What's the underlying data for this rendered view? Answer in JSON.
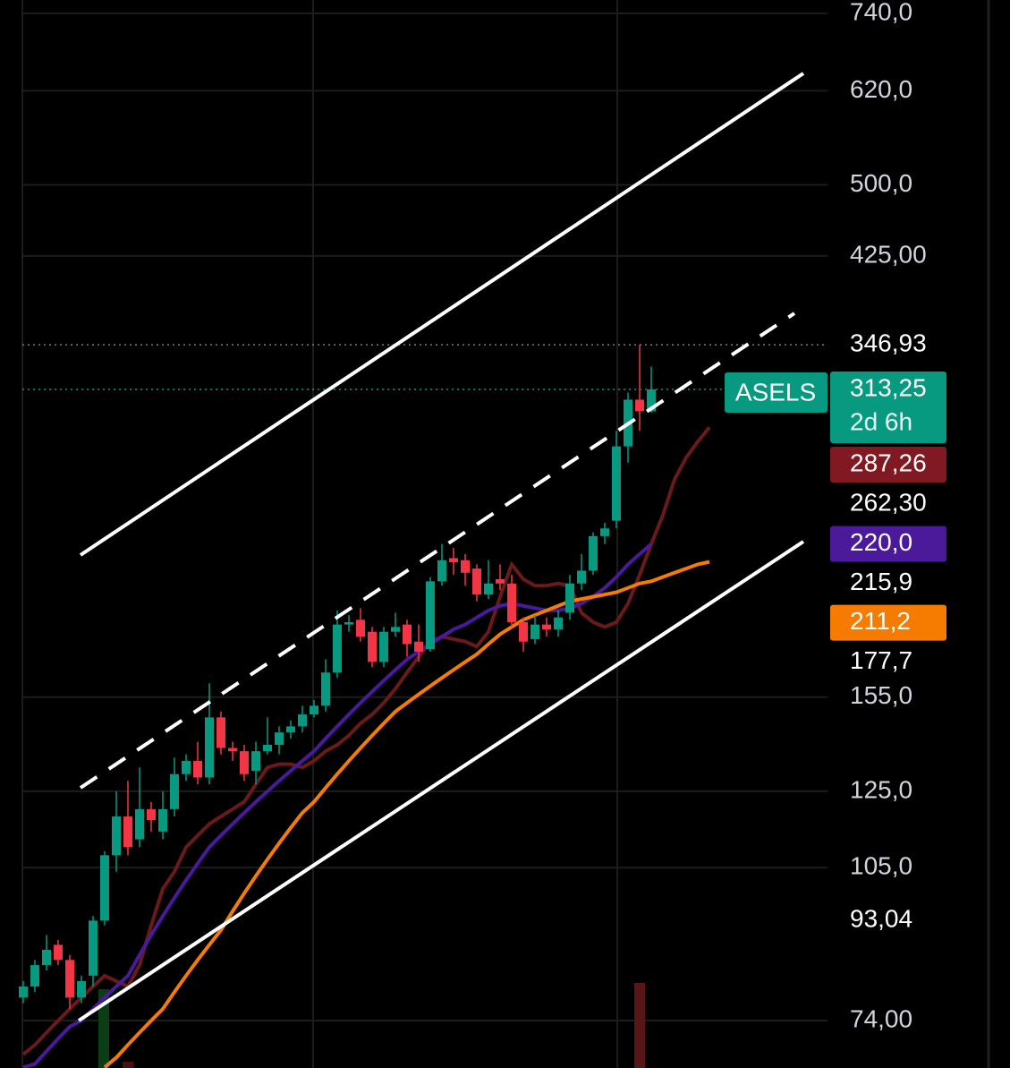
{
  "chart_data": {
    "type": "candlestick",
    "symbol": "ASELS",
    "countdown": "2d 6h",
    "log_scale": true,
    "grid": true,
    "ylim": [
      66.4,
      763
    ],
    "yticks": [
      {
        "value": 740,
        "label": "740,0"
      },
      {
        "value": 620,
        "label": "620,0"
      },
      {
        "value": 500,
        "label": "500,0"
      },
      {
        "value": 425,
        "label": "425,00"
      },
      {
        "value": 155,
        "label": "155,0"
      },
      {
        "value": 125,
        "label": "125,0"
      },
      {
        "value": 105,
        "label": "105,0"
      },
      {
        "value": 74,
        "label": "74,00"
      }
    ],
    "up_color": "#089981",
    "down_color": "#f23645",
    "candles": {
      "open": [
        78,
        80,
        84,
        88,
        85,
        78,
        82,
        93,
        108,
        118,
        112,
        120,
        114,
        120,
        130,
        134,
        129,
        148,
        138,
        137,
        131,
        137,
        139,
        143,
        145,
        149,
        152,
        164,
        183,
        185,
        180,
        168,
        180,
        183,
        176,
        173,
        202,
        213,
        212,
        208,
        196,
        203,
        201,
        184,
        177,
        183,
        181,
        188,
        201,
        207,
        224,
        232,
        275,
        306,
        298
      ],
      "high": [
        81,
        85,
        90,
        89,
        86,
        82,
        94,
        109,
        125,
        128,
        132,
        122,
        125,
        135,
        136,
        140,
        160,
        150,
        140,
        139,
        140,
        148,
        145,
        147,
        152,
        154,
        169,
        189,
        187,
        190,
        182,
        182,
        188,
        185,
        183,
        204,
        220,
        218,
        215,
        210,
        212,
        210,
        205,
        186,
        187,
        186,
        189,
        205,
        215,
        226,
        231,
        285,
        311,
        347,
        330
      ],
      "low": [
        77,
        79,
        83,
        84,
        76,
        77,
        80,
        92,
        104,
        108,
        110,
        114,
        112,
        118,
        128,
        127,
        127,
        136,
        134,
        128,
        127,
        136,
        136,
        141,
        143,
        148,
        150,
        162,
        180,
        176,
        166,
        166,
        178,
        170,
        168,
        172,
        200,
        205,
        200,
        193,
        194,
        198,
        182,
        172,
        175,
        178,
        178,
        185,
        198,
        205,
        220,
        228,
        265,
        285,
        297
      ],
      "close": [
        80,
        84,
        87,
        85,
        78,
        81,
        93,
        108,
        118,
        110,
        120,
        117,
        120,
        130,
        134,
        129,
        148,
        138,
        137,
        130,
        137,
        139,
        143,
        145,
        149,
        152,
        164,
        183,
        184,
        178,
        168,
        180,
        182,
        175,
        172,
        202,
        212,
        211,
        206,
        196,
        201,
        201,
        184,
        176,
        183,
        181,
        186,
        201,
        207,
        224,
        228,
        275,
        306,
        298,
        313.25
      ]
    },
    "series": [
      {
        "color": "#6b1a1a",
        "values": [
          68.5,
          70,
          72,
          74,
          76,
          78,
          80,
          82,
          81,
          80,
          84,
          92,
          100,
          104,
          110,
          113,
          116,
          118,
          120,
          122,
          127,
          132,
          133,
          133,
          132,
          134,
          137,
          139,
          142,
          146,
          149,
          153,
          158,
          164,
          170,
          176,
          178,
          177,
          176,
          174,
          180,
          195,
          210,
          203,
          200,
          200,
          201,
          200,
          188,
          184,
          182,
          184,
          192,
          205,
          220,
          235,
          255,
          268,
          278,
          287.26
        ]
      },
      {
        "color": "#4a1a9a",
        "values": [
          66.5,
          67,
          69,
          71,
          73,
          74,
          76,
          78,
          80,
          82,
          86,
          90,
          94,
          98,
          102,
          106,
          110,
          113,
          116,
          119,
          122,
          125,
          128,
          131,
          134,
          137,
          141,
          145,
          149,
          153,
          157,
          161,
          165,
          169,
          172,
          175,
          178,
          181,
          183,
          186,
          189,
          191,
          192,
          191,
          190,
          189,
          189,
          190,
          192,
          195,
          199,
          204,
          210,
          215,
          220,
          null,
          null,
          null,
          null,
          null
        ]
      },
      {
        "color": "#f57c00",
        "values": [
          null,
          null,
          null,
          null,
          null,
          null,
          null,
          66.5,
          68,
          70,
          72,
          74,
          76,
          79,
          82,
          85,
          88,
          91,
          95,
          99,
          103,
          107,
          111,
          115,
          119,
          122,
          126,
          130,
          134,
          138,
          142,
          146,
          150,
          153,
          156,
          159,
          162,
          165,
          168,
          171,
          175,
          179,
          182,
          185,
          187,
          189,
          191,
          193,
          194,
          195,
          196,
          197,
          199,
          201,
          202,
          204,
          206,
          208,
          210,
          211.2
        ]
      }
    ],
    "price_labels": [
      {
        "value": 346.93,
        "label": "346,93",
        "line_color": "#787b86"
      },
      {
        "value": 313.25,
        "label": "313,25",
        "color": "#089981",
        "line_color": "#089981"
      },
      {
        "value": 287.26,
        "label": "287,26",
        "color": "#801922"
      },
      {
        "value": 262.3,
        "label": "262,30"
      },
      {
        "value": 220,
        "label": "220,0",
        "color": "#4a1a9a"
      },
      {
        "value": 215.9,
        "label": "215,9"
      },
      {
        "value": 211.2,
        "label": "211,2",
        "color": "#f57c00"
      },
      {
        "value": 177.7,
        "label": "177,7"
      },
      {
        "value": 93.04,
        "label": "93,04"
      }
    ]
  }
}
